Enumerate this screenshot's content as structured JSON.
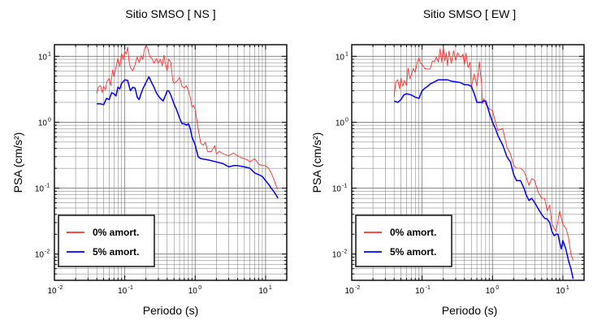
{
  "chart_data": [
    {
      "type": "line",
      "title": "Sitio SMSO [ NS ]",
      "xlabel": "Periodo (s)",
      "ylabel": "PSA (cm/s²)",
      "xscale": "log",
      "yscale": "log",
      "xlim": [
        0.01,
        20
      ],
      "ylim": [
        0.004,
        15
      ],
      "grid": true,
      "legend_position": "bottom-left",
      "xticks": [
        {
          "value": 0.01,
          "base": "10",
          "exp": "-2"
        },
        {
          "value": 0.1,
          "base": "10",
          "exp": "-1"
        },
        {
          "value": 1,
          "base": "10",
          "exp": "0"
        },
        {
          "value": 10,
          "base": "10",
          "exp": "1"
        }
      ],
      "yticks": [
        {
          "value": 0.01,
          "base": "10",
          "exp": "-2"
        },
        {
          "value": 0.1,
          "base": "10",
          "exp": "-1"
        },
        {
          "value": 1,
          "base": "10",
          "exp": "0"
        },
        {
          "value": 10,
          "base": "10",
          "exp": "1"
        }
      ],
      "series": [
        {
          "name": "0% amort.",
          "color": "#ff3030",
          "x": [
            0.04,
            0.042,
            0.045,
            0.048,
            0.05,
            0.053,
            0.056,
            0.06,
            0.063,
            0.067,
            0.07,
            0.075,
            0.08,
            0.085,
            0.09,
            0.095,
            0.1,
            0.105,
            0.11,
            0.115,
            0.12,
            0.13,
            0.14,
            0.15,
            0.16,
            0.17,
            0.18,
            0.19,
            0.2,
            0.21,
            0.22,
            0.23,
            0.24,
            0.26,
            0.28,
            0.3,
            0.32,
            0.34,
            0.36,
            0.38,
            0.4,
            0.42,
            0.45,
            0.48,
            0.5,
            0.55,
            0.6,
            0.65,
            0.7,
            0.75,
            0.8,
            0.85,
            0.9,
            0.95,
            1.0,
            1.1,
            1.2,
            1.3,
            1.4,
            1.5,
            1.7,
            1.9,
            2.0,
            2.2,
            2.5,
            3.0,
            3.5,
            4.0,
            4.5,
            5.0,
            5.5,
            6.0,
            7.0,
            8.0,
            9.0,
            10.0,
            11.0,
            12.0,
            13.0,
            14.0,
            15.0
          ],
          "y": [
            2.7,
            3.4,
            3.6,
            2.8,
            3.5,
            3.1,
            4.2,
            4.6,
            3.6,
            6.2,
            4.9,
            6.8,
            9.3,
            6.9,
            11.0,
            8.9,
            12.0,
            10.8,
            13.8,
            8.4,
            6.7,
            6.0,
            7.5,
            9.8,
            8.0,
            10.2,
            9.0,
            12.8,
            14.5,
            13.6,
            11.2,
            9.6,
            9.5,
            7.8,
            9.2,
            7.8,
            9.0,
            7.2,
            10.4,
            7.5,
            6.0,
            9.1,
            8.1,
            4.3,
            3.9,
            4.2,
            4.8,
            3.5,
            3.3,
            3.6,
            3.0,
            2.4,
            1.7,
            1.8,
            1.55,
            0.8,
            0.48,
            0.45,
            0.5,
            0.36,
            0.36,
            0.44,
            0.33,
            0.36,
            0.33,
            0.31,
            0.34,
            0.31,
            0.29,
            0.28,
            0.27,
            0.25,
            0.28,
            0.23,
            0.22,
            0.22,
            0.2,
            0.17,
            0.14,
            0.11,
            0.095
          ]
        },
        {
          "name": "5% amort.",
          "color": "#0000ff",
          "x": [
            0.04,
            0.045,
            0.05,
            0.055,
            0.06,
            0.065,
            0.07,
            0.075,
            0.08,
            0.085,
            0.09,
            0.1,
            0.11,
            0.12,
            0.13,
            0.14,
            0.15,
            0.16,
            0.17,
            0.18,
            0.2,
            0.22,
            0.24,
            0.26,
            0.28,
            0.3,
            0.32,
            0.35,
            0.38,
            0.4,
            0.42,
            0.45,
            0.5,
            0.55,
            0.6,
            0.65,
            0.7,
            0.75,
            0.8,
            0.85,
            0.9,
            1.0,
            1.1,
            1.2,
            1.5,
            2.0,
            2.5,
            3.0,
            3.5,
            4.0,
            5.0,
            6.0,
            7.0,
            8.0,
            9.0,
            10.0,
            11.0,
            12.0,
            13.0,
            14.0,
            15.0
          ],
          "y": [
            1.9,
            1.9,
            1.85,
            2.3,
            2.2,
            2.8,
            2.7,
            2.5,
            3.4,
            3.2,
            3.9,
            4.4,
            4.3,
            3.0,
            3.4,
            3.3,
            2.4,
            2.2,
            2.7,
            3.2,
            4.0,
            4.9,
            4.0,
            3.4,
            2.8,
            2.5,
            2.3,
            2.1,
            2.6,
            3.0,
            3.0,
            2.6,
            1.9,
            1.5,
            1.15,
            0.95,
            0.95,
            0.9,
            0.95,
            0.8,
            0.6,
            0.45,
            0.3,
            0.28,
            0.27,
            0.25,
            0.235,
            0.21,
            0.22,
            0.22,
            0.21,
            0.2,
            0.17,
            0.16,
            0.15,
            0.13,
            0.115,
            0.1,
            0.09,
            0.08,
            0.07
          ]
        }
      ]
    },
    {
      "type": "line",
      "title": "Sitio SMSO [ EW ]",
      "xlabel": "Periodo (s)",
      "ylabel": "PSA (cm/s²)",
      "xscale": "log",
      "yscale": "log",
      "xlim": [
        0.01,
        20
      ],
      "ylim": [
        0.004,
        15
      ],
      "grid": true,
      "legend_position": "bottom-left",
      "xticks": [
        {
          "value": 0.01,
          "base": "10",
          "exp": "-2"
        },
        {
          "value": 0.1,
          "base": "10",
          "exp": "-1"
        },
        {
          "value": 1,
          "base": "10",
          "exp": "0"
        },
        {
          "value": 10,
          "base": "10",
          "exp": "1"
        }
      ],
      "yticks": [
        {
          "value": 0.01,
          "base": "10",
          "exp": "-2"
        },
        {
          "value": 0.1,
          "base": "10",
          "exp": "-1"
        },
        {
          "value": 1,
          "base": "10",
          "exp": "0"
        },
        {
          "value": 10,
          "base": "10",
          "exp": "1"
        }
      ],
      "series": [
        {
          "name": "0% amort.",
          "color": "#ff3030",
          "x": [
            0.04,
            0.042,
            0.045,
            0.048,
            0.05,
            0.053,
            0.056,
            0.06,
            0.063,
            0.067,
            0.07,
            0.075,
            0.08,
            0.085,
            0.09,
            0.095,
            0.1,
            0.11,
            0.12,
            0.13,
            0.14,
            0.15,
            0.16,
            0.17,
            0.18,
            0.19,
            0.2,
            0.21,
            0.22,
            0.23,
            0.24,
            0.26,
            0.28,
            0.3,
            0.32,
            0.34,
            0.36,
            0.38,
            0.4,
            0.42,
            0.45,
            0.48,
            0.5,
            0.55,
            0.6,
            0.65,
            0.7,
            0.72,
            0.75,
            0.8,
            0.9,
            1.0,
            1.1,
            1.2,
            1.4,
            1.6,
            1.8,
            2.0,
            2.2,
            2.5,
            2.8,
            3.0,
            3.3,
            3.6,
            4.0,
            4.4,
            5.0,
            5.5,
            6.0,
            6.5,
            7.0,
            8.0,
            9.0,
            10.0,
            11.0,
            12.0,
            13.0,
            14.0
          ],
          "y": [
            2.4,
            4.0,
            4.4,
            3.2,
            4.7,
            3.5,
            4.3,
            3.6,
            6.6,
            4.6,
            5.1,
            6.5,
            5.7,
            8.0,
            9.5,
            7.8,
            7.5,
            6.5,
            6.4,
            6.4,
            8.5,
            8.3,
            9.8,
            8.2,
            13.0,
            8.1,
            14.0,
            8.5,
            11.3,
            7.2,
            12.0,
            7.8,
            12.1,
            8.6,
            11.4,
            9.9,
            9.7,
            10.8,
            7.4,
            11.2,
            6.8,
            8.1,
            3.4,
            5.4,
            3.5,
            8.3,
            3.7,
            1.9,
            2.3,
            1.9,
            1.6,
            1.5,
            1.0,
            0.75,
            0.8,
            0.42,
            0.33,
            0.22,
            0.2,
            0.2,
            0.18,
            0.15,
            0.11,
            0.14,
            0.13,
            0.09,
            0.07,
            0.07,
            0.045,
            0.055,
            0.028,
            0.022,
            0.045,
            0.028,
            0.025,
            0.018,
            0.01,
            0.008
          ]
        },
        {
          "name": "5% amort.",
          "color": "#0000ff",
          "x": [
            0.04,
            0.045,
            0.05,
            0.055,
            0.06,
            0.07,
            0.08,
            0.09,
            0.1,
            0.11,
            0.12,
            0.13,
            0.15,
            0.17,
            0.2,
            0.23,
            0.26,
            0.3,
            0.35,
            0.4,
            0.45,
            0.5,
            0.55,
            0.6,
            0.65,
            0.7,
            0.75,
            0.8,
            0.9,
            1.0,
            1.1,
            1.2,
            1.4,
            1.6,
            1.8,
            2.0,
            2.2,
            2.5,
            2.8,
            3.0,
            3.3,
            3.6,
            4.0,
            4.4,
            5.0,
            5.5,
            6.0,
            6.5,
            7.0,
            7.5,
            8.0,
            8.5,
            9.0,
            9.5,
            10.0,
            11.0,
            12.0,
            13.0,
            14.0
          ],
          "y": [
            2.1,
            2.0,
            2.2,
            2.6,
            2.7,
            2.6,
            2.4,
            2.3,
            3.0,
            3.3,
            3.5,
            3.8,
            4.1,
            4.4,
            4.4,
            4.4,
            4.2,
            4.1,
            4.0,
            3.7,
            3.7,
            3.5,
            2.7,
            2.0,
            2.0,
            2.0,
            2.1,
            2.1,
            1.4,
            1.0,
            0.8,
            0.62,
            0.45,
            0.3,
            0.25,
            0.16,
            0.13,
            0.13,
            0.1,
            0.08,
            0.065,
            0.07,
            0.06,
            0.05,
            0.04,
            0.035,
            0.034,
            0.03,
            0.022,
            0.019,
            0.02,
            0.02,
            0.015,
            0.012,
            0.016,
            0.012,
            0.008,
            0.006,
            0.0042
          ]
        }
      ]
    }
  ]
}
